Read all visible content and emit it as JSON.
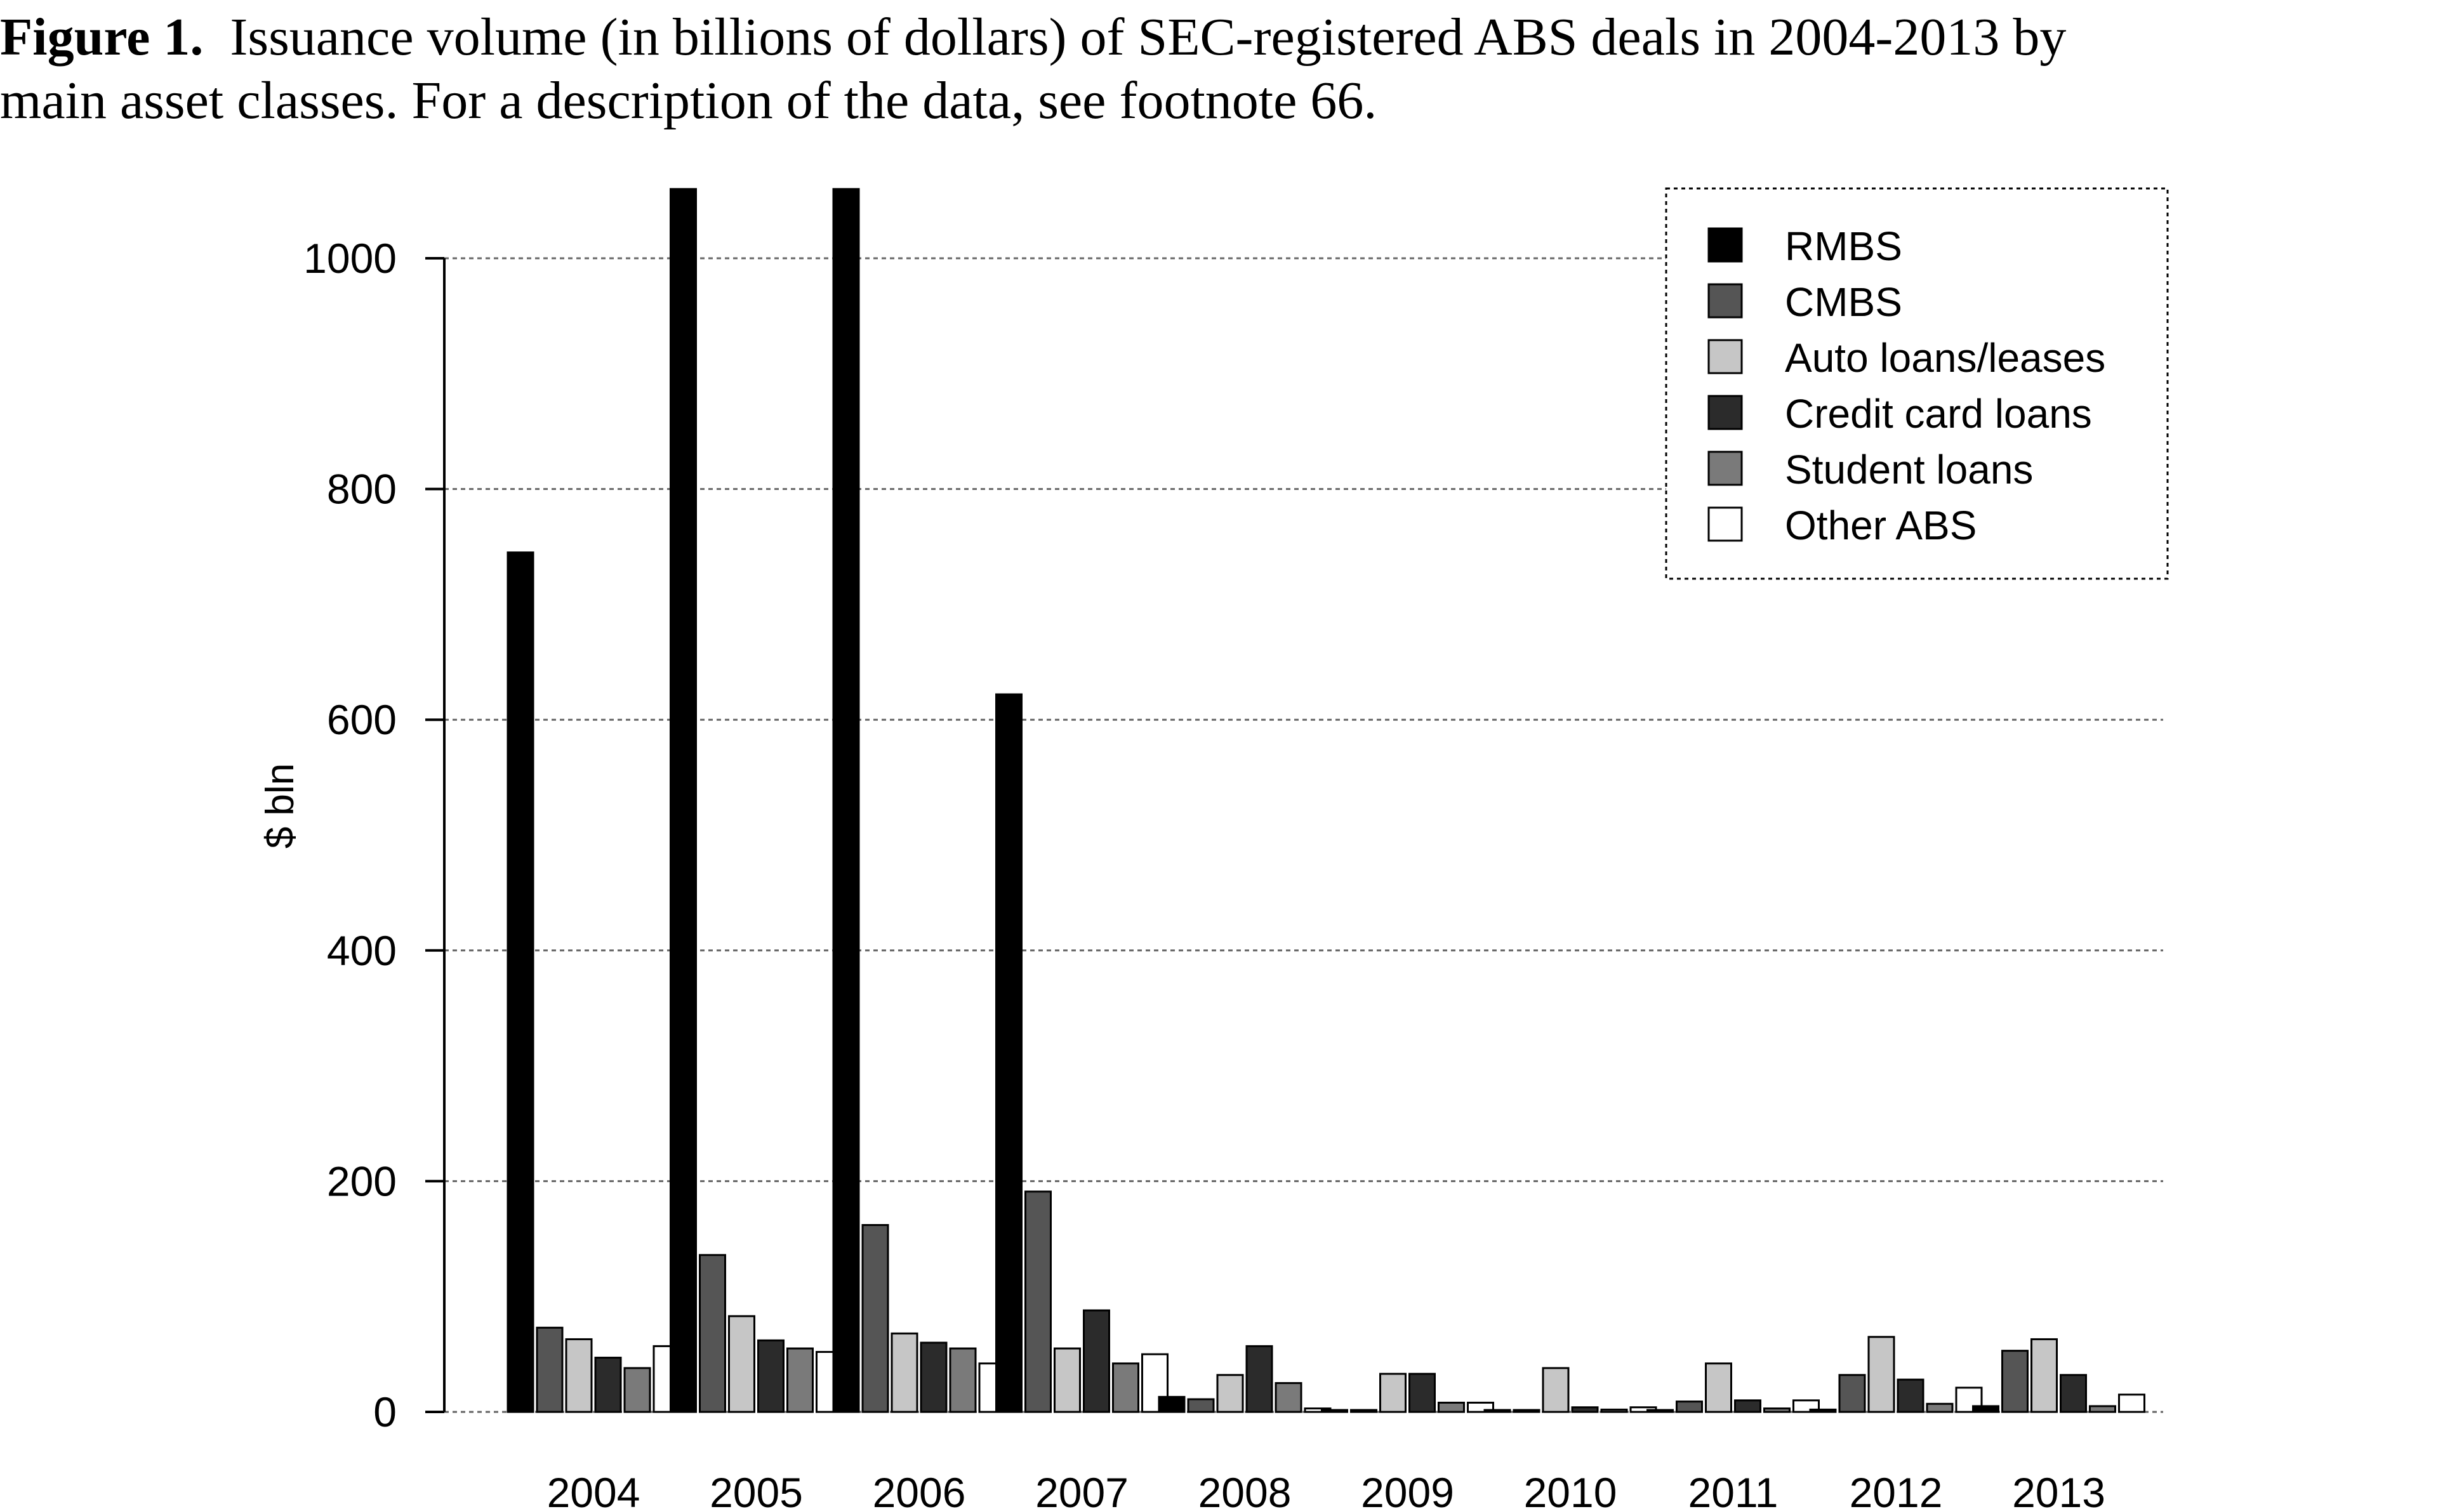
{
  "caption": {
    "label": "Figure 1.",
    "line1": "Issuance volume (in billions of dollars) of SEC-registered ABS deals in 2004-2013 by",
    "line2": "main asset classes. For a description of the data, see footnote 66."
  },
  "chart_data": {
    "type": "bar",
    "ylabel": "$ bln",
    "xlabel": "",
    "ylim": [
      0,
      1000
    ],
    "yticks": [
      0,
      200,
      400,
      600,
      800,
      1000
    ],
    "grid": "horizontal dotted",
    "legend_position": "top-right",
    "categories": [
      "2004",
      "2005",
      "2006",
      "2007",
      "2008",
      "2009",
      "2010",
      "2011",
      "2012",
      "2013"
    ],
    "series": [
      {
        "name": "RMBS",
        "color": "#000000",
        "values": [
          745,
          1060,
          1060,
          622,
          13,
          1,
          1,
          1,
          2,
          5
        ]
      },
      {
        "name": "CMBS",
        "color": "#555555",
        "values": [
          73,
          136,
          162,
          191,
          11,
          1,
          1,
          9,
          32,
          53
        ]
      },
      {
        "name": "Auto loans/leases",
        "color": "#c6c6c6",
        "values": [
          63,
          83,
          68,
          55,
          32,
          33,
          38,
          42,
          65,
          63
        ]
      },
      {
        "name": "Credit card loans",
        "color": "#2b2b2b",
        "values": [
          47,
          62,
          60,
          88,
          57,
          33,
          4,
          10,
          28,
          32
        ]
      },
      {
        "name": "Student loans",
        "color": "#7a7a7a",
        "values": [
          38,
          55,
          55,
          42,
          25,
          8,
          2,
          3,
          7,
          5
        ]
      },
      {
        "name": "Other ABS",
        "color": "#ffffff",
        "values": [
          57,
          52,
          42,
          50,
          3,
          8,
          4,
          10,
          21,
          15
        ]
      }
    ]
  }
}
